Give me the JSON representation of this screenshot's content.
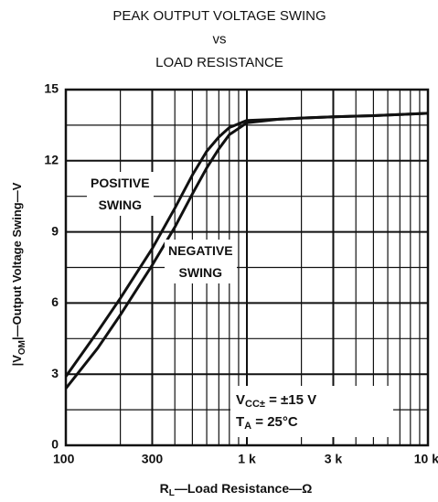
{
  "chart_data": {
    "type": "line",
    "title_lines": [
      "PEAK OUTPUT VOLTAGE SWING",
      "vs",
      "LOAD RESISTANCE"
    ],
    "x_label": {
      "symbol": "R",
      "subscript": "L",
      "text": "—Load Resistance—Ω"
    },
    "y_label": {
      "symbol": "|V",
      "subscript": "OM",
      "text": "|—Output Voltage Swing—V"
    },
    "x_scale": "log",
    "grid": true,
    "x": [
      100,
      150,
      200,
      300,
      400,
      500,
      600,
      700,
      800,
      1000,
      1500,
      2000,
      3000,
      5000,
      7000,
      10000
    ],
    "series": [
      {
        "name": "POSITIVE\nSWING",
        "color": "#111111",
        "values": [
          2.9,
          4.8,
          6.2,
          8.3,
          10.0,
          11.4,
          12.4,
          13.0,
          13.4,
          13.7,
          13.75,
          13.8,
          13.85,
          13.9,
          13.95,
          14.0
        ]
      },
      {
        "name": "NEGATIVE\nSWING",
        "color": "#111111",
        "values": [
          2.4,
          4.1,
          5.5,
          7.6,
          9.2,
          10.6,
          11.7,
          12.5,
          13.1,
          13.6,
          13.75,
          13.8,
          13.85,
          13.9,
          13.95,
          14.0
        ]
      }
    ],
    "xlim": [
      100,
      10000
    ],
    "xticks": [
      100,
      300,
      {
        "value": 1000,
        "label": "1 k"
      },
      {
        "value": 3000,
        "label": "3 k"
      },
      {
        "value": 10000,
        "label": "10 k"
      }
    ],
    "xminorticks": [
      200,
      400,
      500,
      600,
      700,
      800,
      900,
      2000,
      4000,
      5000,
      6000,
      7000,
      8000,
      9000
    ],
    "ylim": [
      0,
      15
    ],
    "yticks": [
      0,
      3,
      6,
      9,
      12,
      15
    ],
    "yminorticks": [
      1.5,
      4.5,
      7.5,
      10.5,
      13.5
    ],
    "annotations": [
      {
        "symbol": "V",
        "subscript": "CC±",
        "text": " = ±15 V"
      },
      {
        "symbol": "T",
        "subscript": "A",
        "text": " = 25°C"
      }
    ]
  }
}
